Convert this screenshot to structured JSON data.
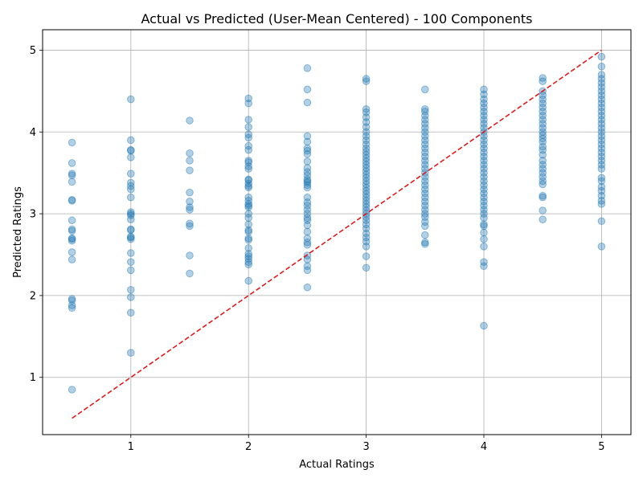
{
  "chart_data": {
    "type": "scatter",
    "title": "Actual vs Predicted (User-Mean Centered) - 100 Components",
    "xlabel": "Actual Ratings",
    "ylabel": "Predicted Ratings",
    "xlim": [
      0.25,
      5.25
    ],
    "ylim": [
      0.3,
      5.25
    ],
    "xticks": [
      "1",
      "2",
      "3",
      "4",
      "5"
    ],
    "yticks": [
      "1",
      "2",
      "3",
      "4",
      "5"
    ],
    "xtick_values": [
      1,
      2,
      3,
      4,
      5
    ],
    "ytick_values": [
      1,
      2,
      3,
      4,
      5
    ],
    "grid": true,
    "point_color": "#1f77b4",
    "point_alpha": 0.35,
    "reference_line": {
      "x": [
        0.5,
        5
      ],
      "y": [
        0.5,
        5
      ],
      "color": "#e31a1c",
      "style": "dashed"
    },
    "points": [
      {
        "x": 0.5,
        "y": [
          0.85,
          1.85,
          1.88,
          1.94,
          1.96,
          2.44,
          2.53,
          2.67,
          2.69,
          2.7,
          2.79,
          2.81,
          2.92,
          3.16,
          3.17,
          3.39,
          3.47,
          3.49,
          3.62,
          3.87
        ]
      },
      {
        "x": 1.0,
        "y": [
          1.3,
          1.79,
          1.98,
          2.07,
          2.31,
          2.41,
          2.52,
          2.69,
          2.71,
          2.72,
          2.8,
          2.81,
          2.93,
          2.98,
          3.0,
          3.02,
          3.2,
          3.3,
          3.34,
          3.38,
          3.49,
          3.69,
          3.77,
          3.78,
          3.9,
          4.4
        ]
      },
      {
        "x": 1.5,
        "y": [
          2.27,
          2.49,
          2.85,
          2.88,
          3.05,
          3.08,
          3.15,
          3.26,
          3.53,
          3.65,
          3.74,
          4.14
        ]
      },
      {
        "x": 2.0,
        "y": [
          2.18,
          2.38,
          2.41,
          2.45,
          2.48,
          2.51,
          2.58,
          2.68,
          2.7,
          2.78,
          2.8,
          2.87,
          2.95,
          3.0,
          3.08,
          3.1,
          3.12,
          3.16,
          3.2,
          3.32,
          3.34,
          3.37,
          3.41,
          3.42,
          3.55,
          3.58,
          3.63,
          3.65,
          3.78,
          3.83,
          3.93,
          3.97,
          4.06,
          4.15,
          4.35,
          4.41
        ]
      },
      {
        "x": 2.5,
        "y": [
          2.1,
          2.31,
          2.36,
          2.44,
          2.49,
          2.62,
          2.65,
          2.7,
          2.78,
          2.86,
          2.92,
          2.95,
          3.0,
          3.05,
          3.1,
          3.14,
          3.2,
          3.32,
          3.35,
          3.38,
          3.4,
          3.42,
          3.47,
          3.51,
          3.56,
          3.64,
          3.73,
          3.77,
          3.8,
          3.88,
          3.95,
          4.36,
          4.52,
          4.78
        ]
      },
      {
        "x": 3.0,
        "y": [
          2.34,
          2.48,
          2.6,
          2.66,
          2.71,
          2.76,
          2.82,
          2.87,
          2.92,
          2.96,
          3.0,
          3.04,
          3.08,
          3.12,
          3.16,
          3.2,
          3.24,
          3.28,
          3.32,
          3.36,
          3.4,
          3.44,
          3.48,
          3.52,
          3.56,
          3.6,
          3.64,
          3.68,
          3.72,
          3.76,
          3.8,
          3.85,
          3.9,
          3.95,
          4.0,
          4.06,
          4.12,
          4.18,
          4.24,
          4.28,
          4.62,
          4.65
        ]
      },
      {
        "x": 3.5,
        "y": [
          2.63,
          2.65,
          2.74,
          2.85,
          2.9,
          2.96,
          3.0,
          3.05,
          3.1,
          3.15,
          3.2,
          3.25,
          3.3,
          3.35,
          3.4,
          3.45,
          3.5,
          3.55,
          3.6,
          3.65,
          3.7,
          3.75,
          3.8,
          3.85,
          3.9,
          3.95,
          4.0,
          4.05,
          4.1,
          4.15,
          4.2,
          4.25,
          4.28,
          4.52
        ]
      },
      {
        "x": 4.0,
        "y": [
          1.63,
          2.36,
          2.41,
          2.6,
          2.69,
          2.77,
          2.85,
          2.87,
          2.95,
          3.0,
          3.05,
          3.1,
          3.15,
          3.2,
          3.25,
          3.3,
          3.35,
          3.4,
          3.45,
          3.5,
          3.55,
          3.6,
          3.65,
          3.7,
          3.75,
          3.8,
          3.85,
          3.9,
          3.95,
          4.0,
          4.05,
          4.1,
          4.15,
          4.2,
          4.25,
          4.3,
          4.35,
          4.4,
          4.46,
          4.52
        ]
      },
      {
        "x": 4.5,
        "y": [
          2.93,
          3.04,
          3.2,
          3.22,
          3.36,
          3.4,
          3.45,
          3.5,
          3.55,
          3.6,
          3.65,
          3.72,
          3.78,
          3.82,
          3.88,
          3.92,
          3.96,
          4.0,
          4.05,
          4.1,
          4.15,
          4.2,
          4.25,
          4.3,
          4.35,
          4.4,
          4.45,
          4.5,
          4.62,
          4.66
        ]
      },
      {
        "x": 5.0,
        "y": [
          2.6,
          2.91,
          3.12,
          3.16,
          3.22,
          3.28,
          3.33,
          3.4,
          3.44,
          3.55,
          3.6,
          3.65,
          3.7,
          3.75,
          3.8,
          3.85,
          3.9,
          3.95,
          4.0,
          4.05,
          4.1,
          4.15,
          4.2,
          4.25,
          4.3,
          4.35,
          4.4,
          4.45,
          4.5,
          4.55,
          4.6,
          4.65,
          4.7,
          4.8,
          4.92
        ]
      }
    ]
  }
}
